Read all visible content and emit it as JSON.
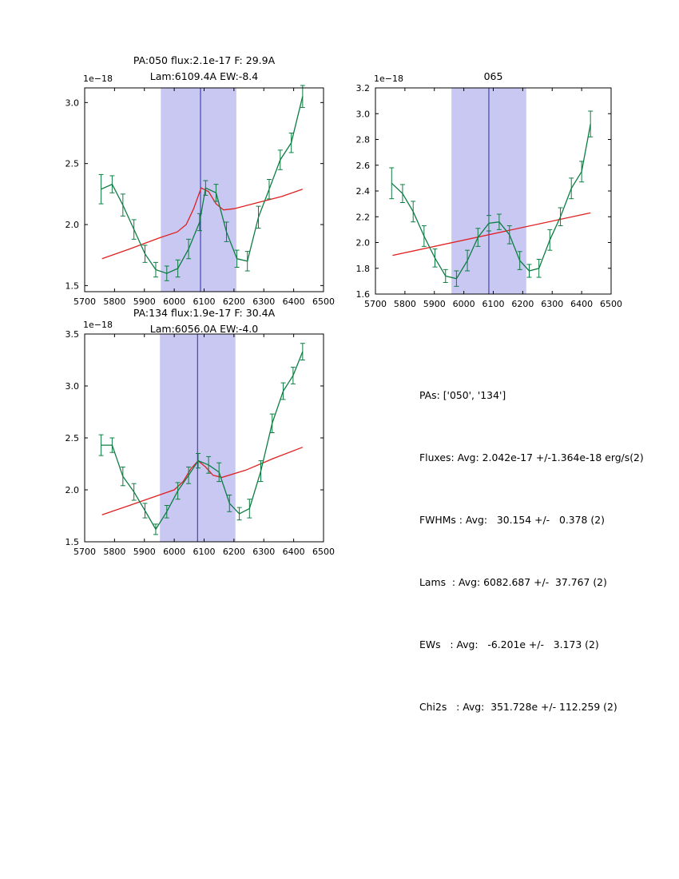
{
  "colors": {
    "spectrum_green": "#0d7d42",
    "fit_red": "#e02020",
    "band_fill": "#b8b8f0",
    "vline_blue": "#2b2ba8",
    "axis_black": "#000000"
  },
  "chart_data": [
    {
      "type": "line",
      "title_lines": [
        "PA:050 flux:2.1e-17 F: 29.9A",
        "Lam:6109.4A EW:-8.4"
      ],
      "offset_label": "1e−18",
      "xlabel": "",
      "ylabel": "",
      "xlim": [
        5700,
        6500
      ],
      "ylim": [
        1.45,
        3.12
      ],
      "xticks": [
        5700,
        5800,
        5900,
        6000,
        6100,
        6200,
        6300,
        6400,
        6500
      ],
      "yticks": [
        1.5,
        2.0,
        2.5,
        3.0
      ],
      "band": [
        5955,
        6208
      ],
      "vline": 6088,
      "legend": "none",
      "grid": false,
      "series": [
        {
          "name": "spectrum",
          "style": "line+errorbars",
          "color_key": "spectrum_green",
          "x": [
            5755,
            5792,
            5828,
            5865,
            5902,
            5938,
            5975,
            6012,
            6048,
            6085,
            6105,
            6140,
            6175,
            6210,
            6245,
            6282,
            6318,
            6355,
            6392,
            6430
          ],
          "y": [
            2.29,
            2.33,
            2.16,
            1.96,
            1.76,
            1.63,
            1.6,
            1.64,
            1.8,
            2.02,
            2.3,
            2.26,
            1.94,
            1.72,
            1.7,
            2.06,
            2.29,
            2.53,
            2.67,
            3.05
          ],
          "yerr": [
            0.12,
            0.07,
            0.09,
            0.08,
            0.07,
            0.06,
            0.06,
            0.07,
            0.08,
            0.07,
            0.06,
            0.07,
            0.08,
            0.07,
            0.08,
            0.09,
            0.08,
            0.08,
            0.08,
            0.09
          ]
        },
        {
          "name": "continuum-plus-gaussian-fit",
          "style": "line",
          "color_key": "fit_red",
          "x": [
            5758,
            5850,
            5950,
            6010,
            6040,
            6065,
            6090,
            6115,
            6140,
            6165,
            6200,
            6280,
            6360,
            6430
          ],
          "y": [
            1.72,
            1.8,
            1.89,
            1.94,
            2.0,
            2.13,
            2.3,
            2.27,
            2.17,
            2.12,
            2.13,
            2.18,
            2.23,
            2.29
          ]
        }
      ]
    },
    {
      "type": "line",
      "title_lines": [
        "065"
      ],
      "offset_label": "1e−18",
      "xlabel": "",
      "ylabel": "",
      "xlim": [
        5700,
        6500
      ],
      "ylim": [
        1.6,
        3.2
      ],
      "xticks": [
        5700,
        5800,
        5900,
        6000,
        6100,
        6200,
        6300,
        6400,
        6500
      ],
      "yticks": [
        1.6,
        1.8,
        2.0,
        2.2,
        2.4,
        2.6,
        2.8,
        3.0,
        3.2
      ],
      "band": [
        5958,
        6212
      ],
      "vline": 6085,
      "legend": "none",
      "grid": false,
      "series": [
        {
          "name": "spectrum",
          "style": "line+errorbars",
          "color_key": "spectrum_green",
          "x": [
            5755,
            5792,
            5828,
            5865,
            5902,
            5938,
            5975,
            6012,
            6048,
            6085,
            6120,
            6155,
            6190,
            6222,
            6255,
            6292,
            6328,
            6365,
            6400,
            6430
          ],
          "y": [
            2.46,
            2.38,
            2.24,
            2.05,
            1.88,
            1.74,
            1.72,
            1.86,
            2.04,
            2.15,
            2.16,
            2.06,
            1.86,
            1.78,
            1.8,
            2.02,
            2.2,
            2.42,
            2.55,
            2.92
          ],
          "yerr": [
            0.12,
            0.07,
            0.08,
            0.08,
            0.07,
            0.05,
            0.06,
            0.08,
            0.07,
            0.06,
            0.06,
            0.07,
            0.07,
            0.05,
            0.07,
            0.08,
            0.07,
            0.08,
            0.08,
            0.1
          ]
        },
        {
          "name": "continuum-fit",
          "style": "line",
          "color_key": "fit_red",
          "x": [
            5758,
            6430
          ],
          "y": [
            1.9,
            2.23
          ]
        }
      ]
    },
    {
      "type": "line",
      "title_lines": [
        "PA:134 flux:1.9e-17 F: 30.4A",
        "Lam:6056.0A EW:-4.0"
      ],
      "offset_label": "1e−18",
      "xlabel": "",
      "ylabel": "",
      "xlim": [
        5700,
        6500
      ],
      "ylim": [
        1.5,
        3.5
      ],
      "xticks": [
        5700,
        5800,
        5900,
        6000,
        6100,
        6200,
        6300,
        6400,
        6500
      ],
      "yticks": [
        1.5,
        2.0,
        2.5,
        3.0,
        3.5
      ],
      "band": [
        5952,
        6205
      ],
      "vline": 6078,
      "legend": "none",
      "grid": false,
      "series": [
        {
          "name": "spectrum",
          "style": "line+errorbars",
          "color_key": "spectrum_green",
          "x": [
            5755,
            5792,
            5828,
            5865,
            5902,
            5938,
            5975,
            6012,
            6048,
            6080,
            6115,
            6150,
            6185,
            6218,
            6252,
            6290,
            6328,
            6365,
            6398,
            6430
          ],
          "y": [
            2.43,
            2.43,
            2.13,
            1.98,
            1.8,
            1.62,
            1.79,
            1.99,
            2.14,
            2.28,
            2.24,
            2.17,
            1.87,
            1.77,
            1.82,
            2.18,
            2.64,
            2.95,
            3.1,
            3.33
          ],
          "yerr": [
            0.1,
            0.07,
            0.09,
            0.08,
            0.07,
            0.05,
            0.06,
            0.08,
            0.08,
            0.07,
            0.08,
            0.09,
            0.08,
            0.06,
            0.09,
            0.1,
            0.09,
            0.08,
            0.08,
            0.08
          ]
        },
        {
          "name": "continuum-plus-gaussian-fit",
          "style": "line",
          "color_key": "fit_red",
          "x": [
            5758,
            5850,
            5940,
            6000,
            6030,
            6055,
            6080,
            6105,
            6130,
            6160,
            6240,
            6330,
            6430
          ],
          "y": [
            1.76,
            1.85,
            1.94,
            2.0,
            2.08,
            2.2,
            2.28,
            2.22,
            2.14,
            2.12,
            2.19,
            2.3,
            2.41
          ]
        }
      ]
    }
  ],
  "stats": {
    "lines": [
      "PAs: ['050', '134']",
      "Fluxes: Avg: 2.042e-17 +/-1.364e-18 erg/s(2)",
      "FWHMs : Avg:   30.154 +/-   0.378 (2)",
      "Lams  : Avg: 6082.687 +/-  37.767 (2)",
      "EWs   : Avg:   -6.201e +/-   3.173 (2)",
      "Chi2s   : Avg:  351.728e +/- 112.259 (2)"
    ]
  }
}
